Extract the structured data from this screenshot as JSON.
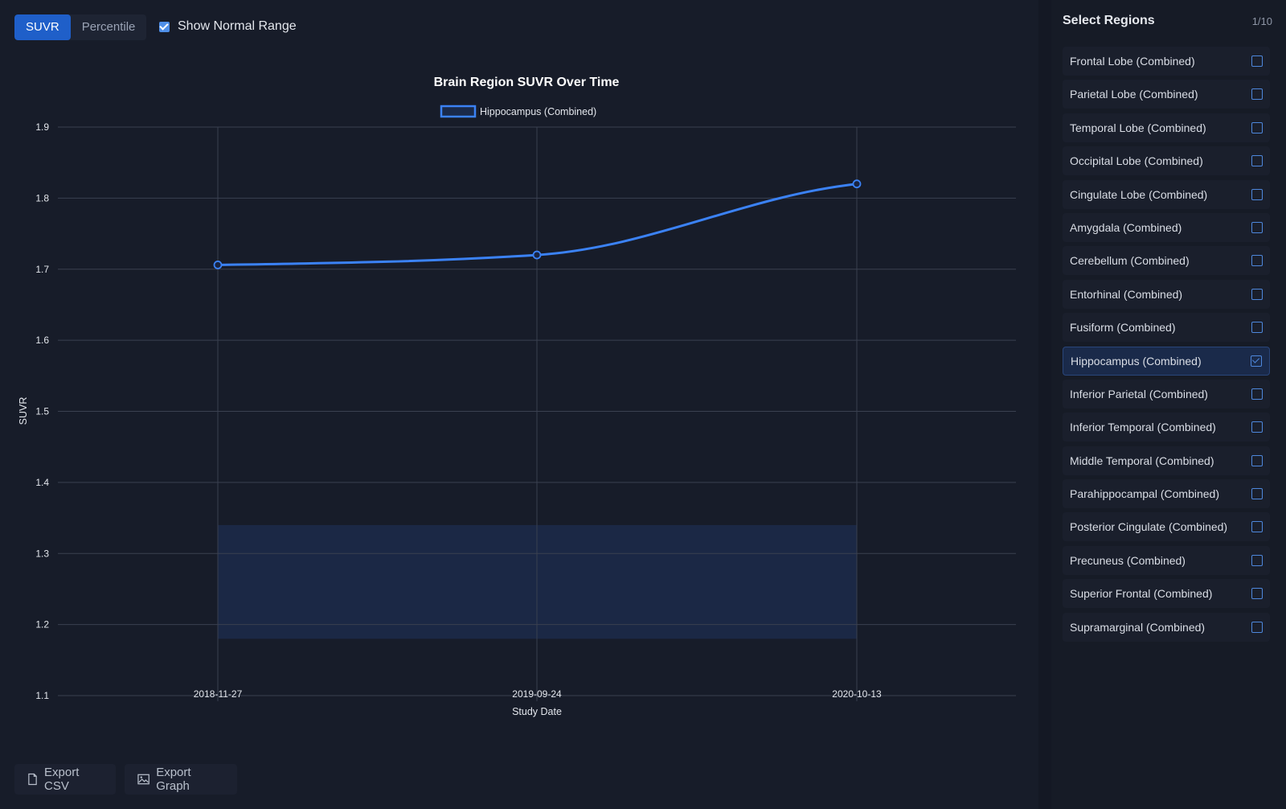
{
  "toolbar": {
    "mode_tabs": [
      {
        "label": "SUVR",
        "active": true
      },
      {
        "label": "Percentile",
        "active": false
      }
    ],
    "normal_range_label": "Show Normal Range",
    "normal_range_checked": true
  },
  "chart_data": {
    "type": "line",
    "title": "Brain Region SUVR Over Time",
    "xlabel": "Study Date",
    "ylabel": "SUVR",
    "categories": [
      "2018-11-27",
      "2019-09-24",
      "2020-10-13"
    ],
    "series": [
      {
        "name": "Hippocampus (Combined)",
        "values": [
          1.706,
          1.72,
          1.82
        ],
        "color": "#3b82f6"
      }
    ],
    "ylim": [
      1.1,
      1.9
    ],
    "yticks": [
      "1.9",
      "1.8",
      "1.7",
      "1.6",
      "1.5",
      "1.4",
      "1.3",
      "1.2",
      "1.1"
    ],
    "normal_range": [
      1.18,
      1.34
    ],
    "grid": true,
    "legend": "top-center"
  },
  "export": {
    "csv_label": "Export CSV",
    "graph_label": "Export Graph"
  },
  "sidebar": {
    "title": "Select Regions",
    "count": "1/10",
    "regions": [
      {
        "label": "Frontal Lobe (Combined)",
        "checked": false
      },
      {
        "label": "Parietal Lobe (Combined)",
        "checked": false
      },
      {
        "label": "Temporal Lobe (Combined)",
        "checked": false
      },
      {
        "label": "Occipital Lobe (Combined)",
        "checked": false
      },
      {
        "label": "Cingulate Lobe (Combined)",
        "checked": false
      },
      {
        "label": "Amygdala (Combined)",
        "checked": false
      },
      {
        "label": "Cerebellum (Combined)",
        "checked": false
      },
      {
        "label": "Entorhinal (Combined)",
        "checked": false
      },
      {
        "label": "Fusiform (Combined)",
        "checked": false
      },
      {
        "label": "Hippocampus (Combined)",
        "checked": true
      },
      {
        "label": "Inferior Parietal (Combined)",
        "checked": false
      },
      {
        "label": "Inferior Temporal (Combined)",
        "checked": false
      },
      {
        "label": "Middle Temporal (Combined)",
        "checked": false
      },
      {
        "label": "Parahippocampal (Combined)",
        "checked": false
      },
      {
        "label": "Posterior Cingulate (Combined)",
        "checked": false
      },
      {
        "label": "Precuneus (Combined)",
        "checked": false
      },
      {
        "label": "Superior Frontal (Combined)",
        "checked": false
      },
      {
        "label": "Supramarginal (Combined)",
        "checked": false
      }
    ]
  }
}
